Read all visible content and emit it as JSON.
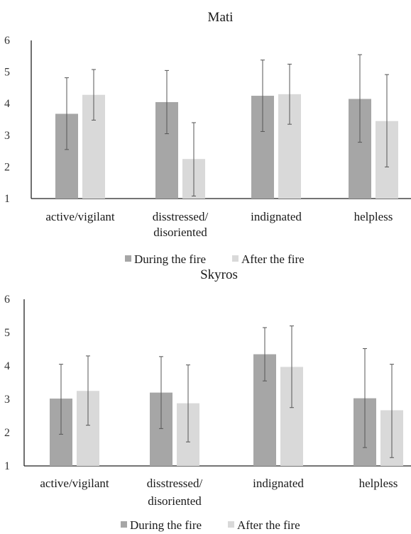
{
  "chart_data": [
    {
      "type": "bar",
      "title": "Mati",
      "categories": [
        "active/vigilant",
        "disstressed/\ndisoriented",
        "indignated",
        "helpless"
      ],
      "series": [
        {
          "name": "During the fire",
          "color": "#a6a6a6",
          "values": [
            3.68,
            4.05,
            4.25,
            4.15
          ],
          "error_low": [
            2.55,
            3.05,
            3.12,
            2.78
          ],
          "error_high": [
            4.82,
            5.05,
            5.38,
            5.55
          ]
        },
        {
          "name": "After the fire",
          "color": "#d9d9d9",
          "values": [
            4.28,
            2.25,
            4.3,
            3.45
          ],
          "error_low": [
            3.48,
            1.08,
            3.35,
            2.0
          ],
          "error_high": [
            5.08,
            3.4,
            5.25,
            4.92
          ]
        }
      ],
      "ylim": [
        1,
        6
      ],
      "yticks": [
        "1",
        "2",
        "3",
        "4",
        "5",
        "6"
      ],
      "xlabel": "",
      "ylabel": "",
      "legend": "bottom",
      "grid": false
    },
    {
      "type": "bar",
      "title": "Skyros",
      "categories": [
        "active/vigilant",
        "disstressed/\ndisoriented",
        "indignated",
        "helpless"
      ],
      "series": [
        {
          "name": "During the fire",
          "color": "#a6a6a6",
          "values": [
            3.02,
            3.2,
            4.35,
            3.03
          ],
          "error_low": [
            1.95,
            2.12,
            3.55,
            1.55
          ],
          "error_high": [
            4.05,
            4.28,
            5.15,
            4.52
          ]
        },
        {
          "name": "After the fire",
          "color": "#d9d9d9",
          "values": [
            3.25,
            2.88,
            3.97,
            2.67
          ],
          "error_low": [
            2.22,
            1.72,
            2.75,
            1.25
          ],
          "error_high": [
            4.3,
            4.03,
            5.2,
            4.05
          ]
        }
      ],
      "ylim": [
        1,
        6
      ],
      "yticks": [
        "1",
        "2",
        "3",
        "4",
        "5",
        "6"
      ],
      "xlabel": "",
      "ylabel": "",
      "legend": "bottom",
      "grid": false
    }
  ]
}
